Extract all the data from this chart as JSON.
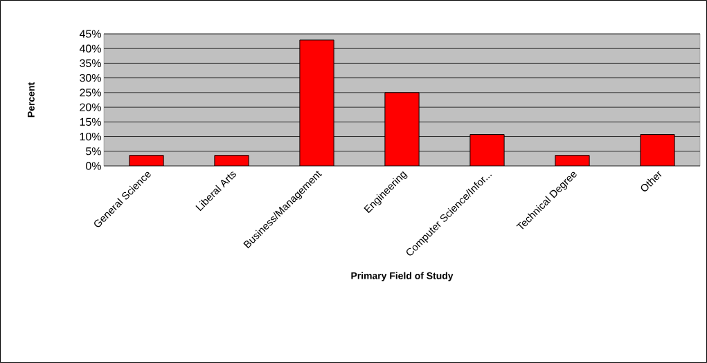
{
  "chart_data": {
    "type": "bar",
    "xlabel": "Primary Field of Study",
    "ylabel": "Percent",
    "categories": [
      "General Science",
      "Liberal Arts",
      "Business/Management",
      "Engineering",
      "Computer Science/Infor...",
      "Technical Degree",
      "Other"
    ],
    "values": [
      3.6,
      3.6,
      42.9,
      25.0,
      10.7,
      3.6,
      10.7
    ],
    "color": "#ff0000",
    "ylim": [
      0,
      45
    ],
    "yticks": [
      {
        "value": 0,
        "label": "0%"
      },
      {
        "value": 5,
        "label": "5%"
      },
      {
        "value": 10,
        "label": "10%"
      },
      {
        "value": 15,
        "label": "15%"
      },
      {
        "value": 20,
        "label": "20%"
      },
      {
        "value": 25,
        "label": "25%"
      },
      {
        "value": 30,
        "label": "30%"
      },
      {
        "value": 35,
        "label": "35%"
      },
      {
        "value": 40,
        "label": "40%"
      },
      {
        "value": 45,
        "label": "45%"
      }
    ],
    "grid": "y"
  }
}
